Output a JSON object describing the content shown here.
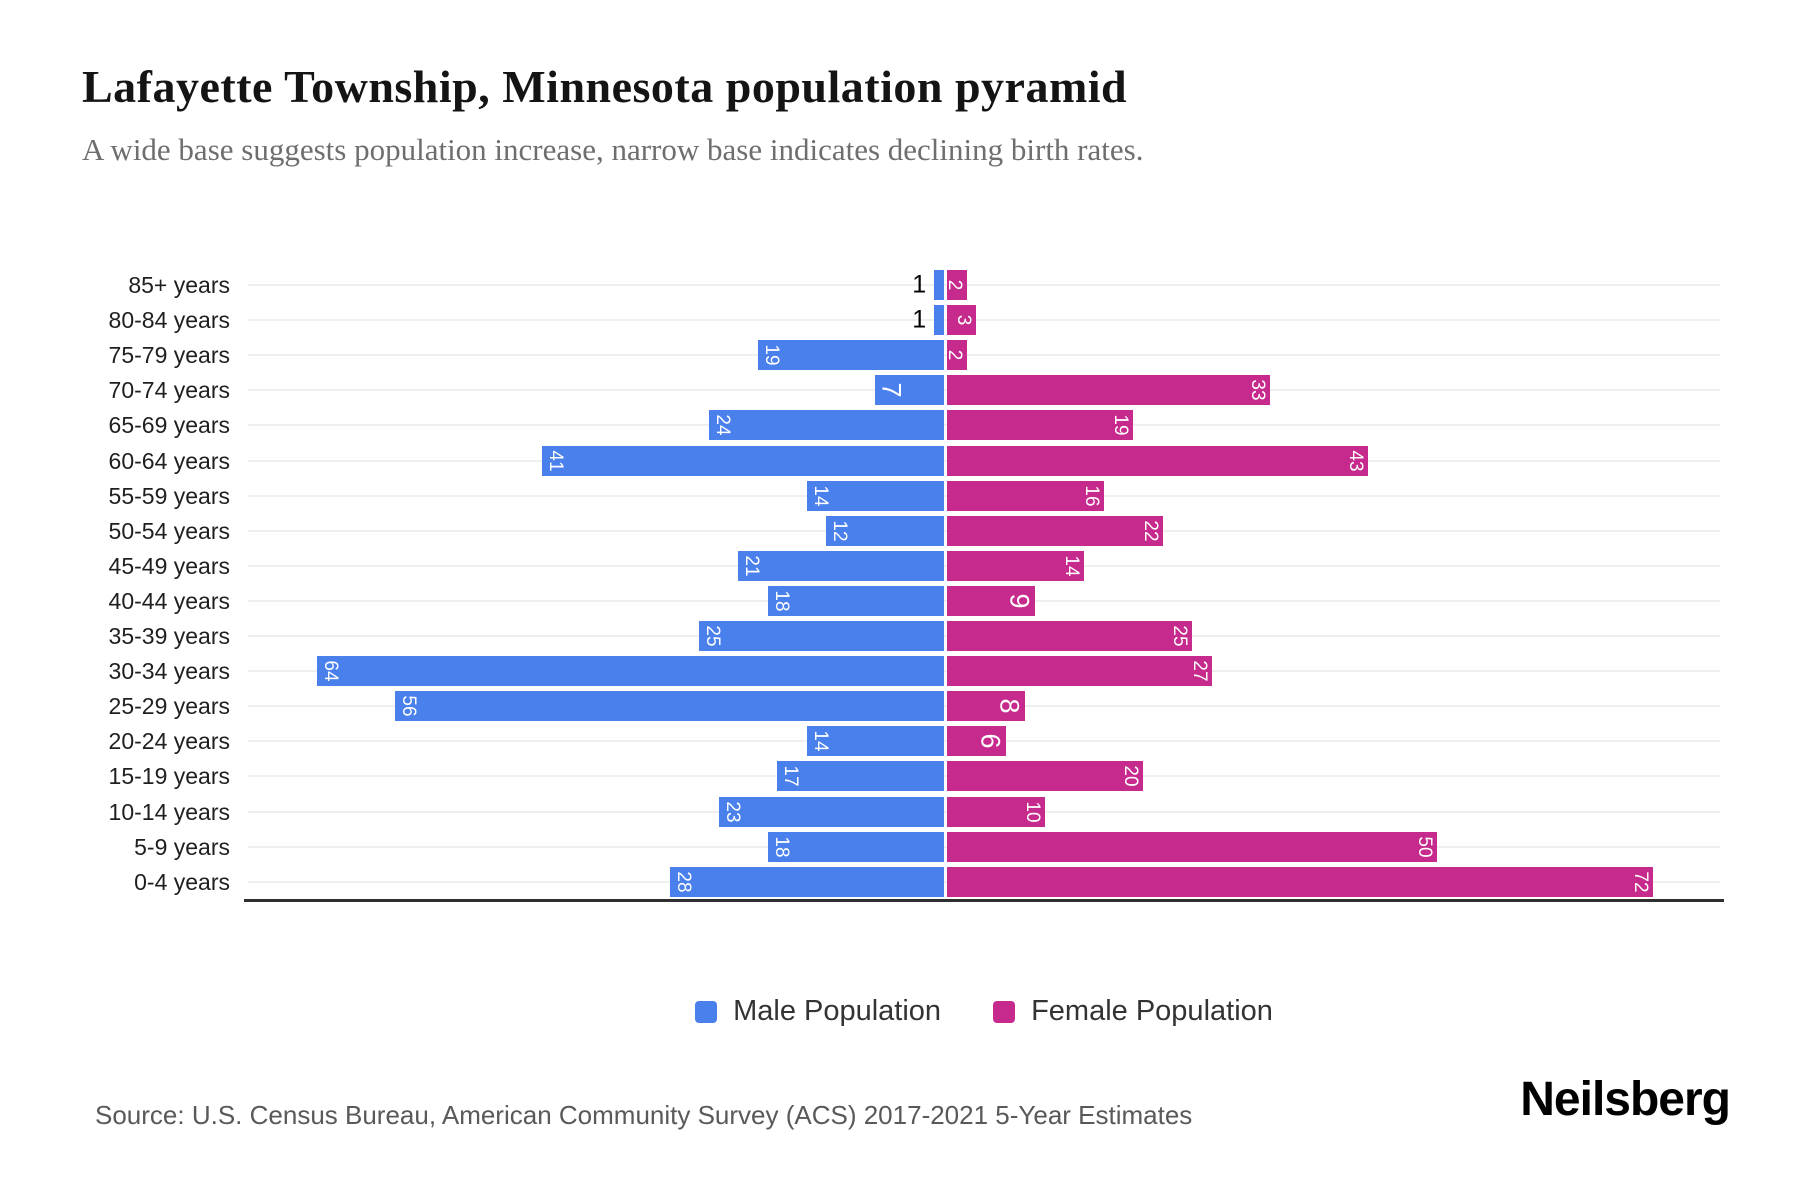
{
  "title": "Lafayette Township, Minnesota population pyramid",
  "subtitle": "A wide base suggests population increase, narrow base indicates declining birth rates.",
  "source": "Source: U.S. Census Bureau, American Community Survey (ACS) 2017-2021 5-Year Estimates",
  "brand": "Neilsberg",
  "colors": {
    "male": "#4a80ec",
    "female": "#c62a8d",
    "gridline": "#efefef",
    "axis_line": "#2f2f2f",
    "title_text": "#141414",
    "subtitle_text": "#6e6e6e",
    "inside_label_text": "#ffffff",
    "outside_label_text": "#000000"
  },
  "legend": {
    "items": [
      {
        "label": "Male Population",
        "color": "#4a80ec"
      },
      {
        "label": "Female Population",
        "color": "#c62a8d"
      }
    ]
  },
  "chart_data": {
    "type": "bar",
    "subtype": "population-pyramid",
    "orientation": "horizontal",
    "title": "Lafayette Township, Minnesota population pyramid",
    "xlabel": "",
    "ylabel": "",
    "x_axis_tick_labels_visible": false,
    "grid": "horizontal-category-lines",
    "legend_position": "bottom-center",
    "categories": [
      "85+ years",
      "80-84 years",
      "75-79 years",
      "70-74 years",
      "65-69 years",
      "60-64 years",
      "55-59 years",
      "50-54 years",
      "45-49 years",
      "40-44 years",
      "35-39 years",
      "30-34 years",
      "25-29 years",
      "20-24 years",
      "15-19 years",
      "10-14 years",
      "5-9 years",
      "0-4 years"
    ],
    "series": [
      {
        "name": "Male Population",
        "side": "left",
        "color": "#4a80ec",
        "values": [
          1,
          1,
          19,
          7,
          24,
          41,
          14,
          12,
          21,
          18,
          25,
          64,
          56,
          14,
          17,
          23,
          18,
          28
        ],
        "label_styles": [
          "outside",
          "outside",
          "small",
          "large",
          "small",
          "small",
          "small",
          "small",
          "small",
          "small",
          "small",
          "small",
          "small",
          "small",
          "small",
          "small",
          "small",
          "small"
        ]
      },
      {
        "name": "Female Population",
        "side": "right",
        "color": "#c62a8d",
        "values": [
          2,
          3,
          2,
          33,
          19,
          43,
          16,
          22,
          14,
          9,
          25,
          27,
          8,
          6,
          20,
          10,
          50,
          72
        ],
        "label_styles": [
          "small",
          "small",
          "small",
          "small",
          "small",
          "small",
          "small",
          "small",
          "small",
          "large",
          "small",
          "small",
          "large",
          "large",
          "small",
          "small",
          "small",
          "small"
        ]
      }
    ],
    "value_axis_max_per_side": 75
  }
}
